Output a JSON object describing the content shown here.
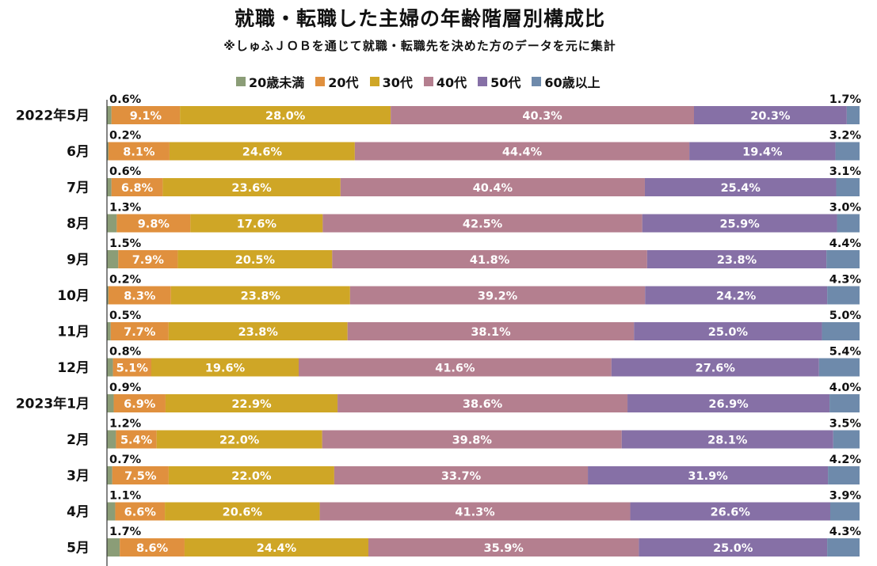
{
  "chart_data": {
    "type": "bar",
    "orientation": "horizontal",
    "stacked": true,
    "title": "就職・転職した主婦の年齢階層別構成比",
    "subtitle": "※しゅふＪＯＢを通じて就職・転職先を決めた方のデータを元に集計",
    "xlabel": "",
    "ylabel": "",
    "xlim": [
      0,
      100
    ],
    "legend_position": "top",
    "categories": [
      "2022年5月",
      "6月",
      "7月",
      "8月",
      "9月",
      "10月",
      "11月",
      "12月",
      "2023年1月",
      "2月",
      "3月",
      "4月",
      "5月"
    ],
    "series": [
      {
        "name": "20歳未満",
        "color": "#8b9d77",
        "values": [
          0.6,
          0.2,
          0.6,
          1.3,
          1.5,
          0.2,
          0.5,
          0.8,
          0.9,
          1.2,
          0.7,
          1.1,
          1.7
        ]
      },
      {
        "name": "20代",
        "color": "#e0903e",
        "values": [
          9.1,
          8.1,
          6.8,
          9.8,
          7.9,
          8.3,
          7.7,
          5.1,
          6.9,
          5.4,
          7.5,
          6.6,
          8.6
        ]
      },
      {
        "name": "30代",
        "color": "#cfa626",
        "values": [
          28.0,
          24.6,
          23.6,
          17.6,
          20.5,
          23.8,
          23.8,
          19.6,
          22.9,
          22.0,
          22.0,
          20.6,
          24.4
        ]
      },
      {
        "name": "40代",
        "color": "#b47f8f",
        "values": [
          40.3,
          44.4,
          40.4,
          42.5,
          41.8,
          39.2,
          38.1,
          41.6,
          38.6,
          39.8,
          33.7,
          41.3,
          35.9
        ]
      },
      {
        "name": "50代",
        "color": "#8670a6",
        "values": [
          20.3,
          19.4,
          25.4,
          25.9,
          23.8,
          24.2,
          25.0,
          27.6,
          26.9,
          28.1,
          31.9,
          26.6,
          25.0
        ]
      },
      {
        "name": "60歳以上",
        "color": "#6e8aab",
        "values": [
          1.7,
          3.2,
          3.1,
          3.0,
          4.4,
          4.3,
          5.0,
          5.4,
          4.0,
          3.5,
          4.2,
          3.9,
          4.3
        ]
      }
    ]
  }
}
